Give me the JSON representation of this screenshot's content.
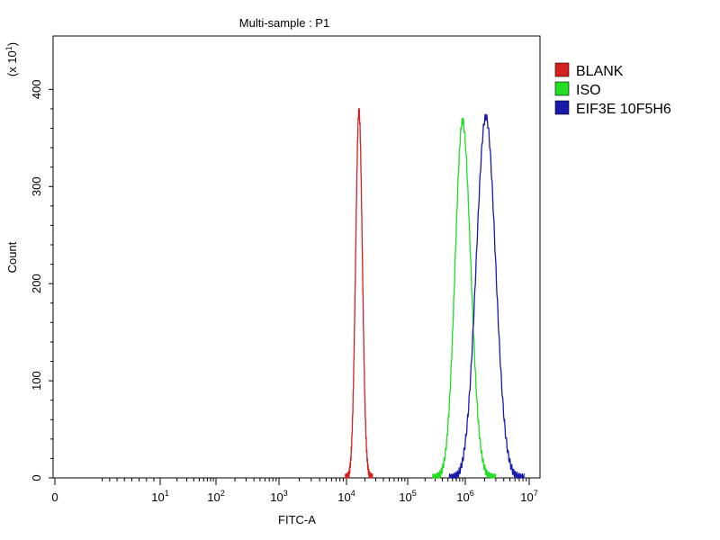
{
  "chart_data": {
    "type": "line",
    "title": "Multi-sample : P1",
    "xlabel": "FITC-A",
    "ylabel": "Count",
    "y_multiplier_label": {
      "prefix": "(x 10",
      "exp": "1",
      "suffix": ")"
    },
    "x_scale": "log",
    "x_tick_labels": [
      {
        "base": "0",
        "exp": ""
      },
      {
        "base": "10",
        "exp": "1"
      },
      {
        "base": "10",
        "exp": "2"
      },
      {
        "base": "10",
        "exp": "3"
      },
      {
        "base": "10",
        "exp": "4"
      },
      {
        "base": "10",
        "exp": "5"
      },
      {
        "base": "10",
        "exp": "6"
      },
      {
        "base": "10",
        "exp": "7"
      }
    ],
    "y_ticks": [
      0,
      100,
      200,
      300,
      400
    ],
    "y_tick_labels": [
      "0",
      "100",
      "200",
      "300",
      "400"
    ],
    "ylim": [
      0,
      455
    ],
    "legend_position": "right",
    "series": [
      {
        "name": "BLANK",
        "color": "#d42020",
        "peak_x": 16000,
        "peak_y": 378,
        "sigma_log10": 0.055
      },
      {
        "name": "ISO",
        "color": "#22dd22",
        "peak_x": 900000,
        "peak_y": 368,
        "sigma_log10": 0.13
      },
      {
        "name": "EIF3E 10F5H6",
        "color": "#1a1aaa",
        "peak_x": 2100000,
        "peak_y": 372,
        "sigma_log10": 0.15
      }
    ]
  }
}
